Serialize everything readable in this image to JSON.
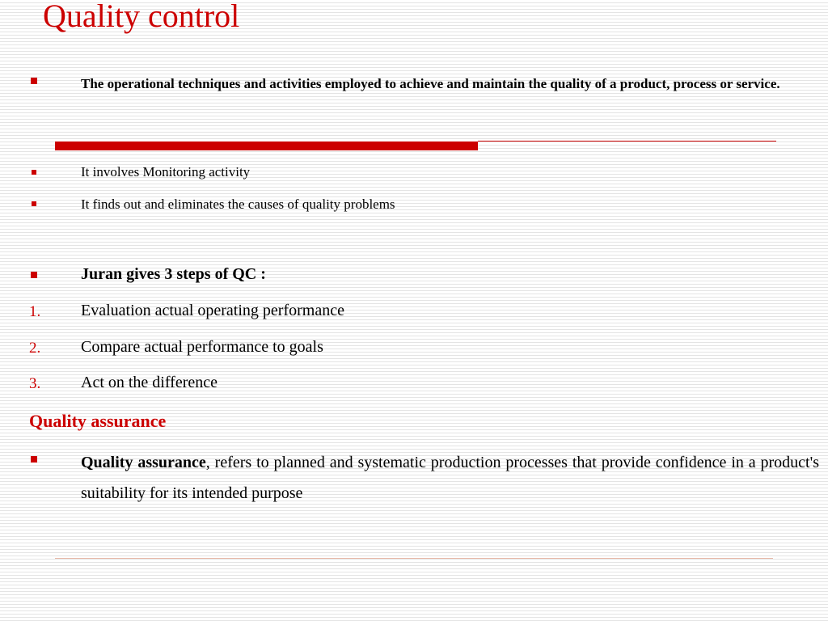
{
  "title": "Quality control",
  "definition": "The operational techniques and activities employed to achieve and maintain the quality of a product, process or service.",
  "points": [
    "It involves Monitoring activity",
    "It finds out and eliminates the causes of quality problems"
  ],
  "juran_heading": "Juran gives 3 steps of QC :",
  "steps": [
    {
      "number": "1.",
      "text": "Evaluation actual operating performance"
    },
    {
      "number": "2.",
      "text": "Compare actual performance to goals"
    },
    {
      "number": "3.",
      "text": "Act on the difference"
    }
  ],
  "qa_heading": "Quality assurance",
  "qa_term": "Quality assurance",
  "qa_text": ", refers to planned and systematic production processes that provide confidence in a product's suitability for its intended purpose",
  "colors": {
    "accent": "#cc0000",
    "text": "#000000",
    "stripe": "#e4e4e4"
  },
  "icons": {
    "bullet": "square-bullet-icon"
  }
}
